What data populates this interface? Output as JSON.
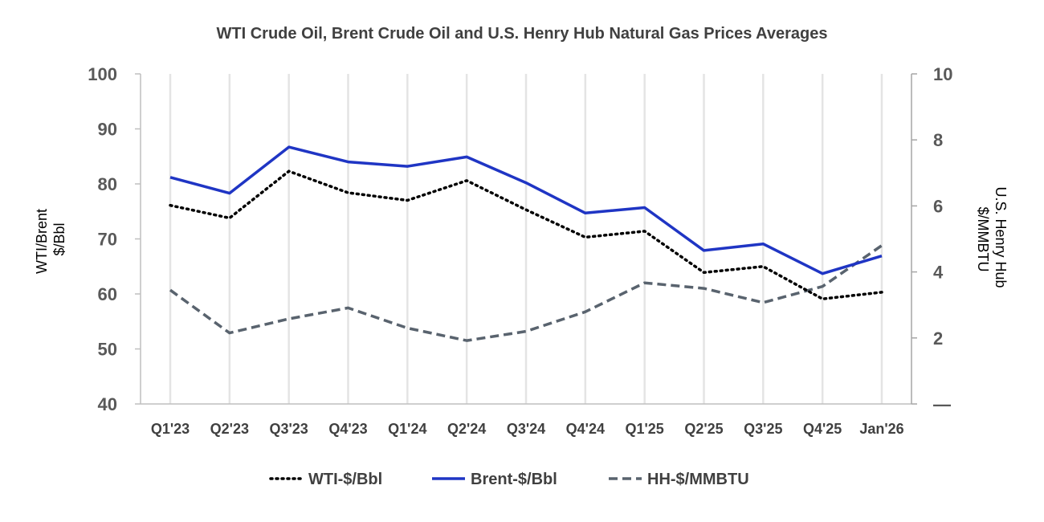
{
  "chart_data": {
    "type": "line",
    "title": "WTI Crude Oil, Brent Crude Oil and U.S. Henry Hub Natural Gas Prices Averages",
    "categories": [
      "Q1'23",
      "Q2'23",
      "Q3'23",
      "Q4'23",
      "Q1'24",
      "Q2'24",
      "Q3'24",
      "Q4'24",
      "Q1'25",
      "Q2'25",
      "Q3'25",
      "Q4'25",
      "Jan'26"
    ],
    "y_left": {
      "label_lines": [
        "WTI/Brent",
        "$/Bbl"
      ],
      "range": [
        40,
        100
      ],
      "ticks": [
        40,
        50,
        60,
        70,
        80,
        90,
        100
      ]
    },
    "y_right": {
      "label_lines": [
        "U.S. Henry Hub",
        "$/MMBTU"
      ],
      "range": [
        0,
        10
      ],
      "ticks": [
        0,
        2,
        4,
        6,
        8,
        10
      ],
      "tick_labels": [
        "—",
        "2",
        "4",
        "6",
        "8",
        "10"
      ]
    },
    "series": [
      {
        "name": "WTI-$/Bbl",
        "axis": "left",
        "style": "dotted",
        "color": "#000000",
        "values": [
          76.1,
          73.8,
          82.3,
          78.4,
          77.0,
          80.6,
          75.3,
          70.3,
          71.4,
          63.9,
          65.0,
          59.1,
          60.3
        ]
      },
      {
        "name": "Brent-$/Bbl",
        "axis": "left",
        "style": "solid",
        "color": "#1f35c4",
        "values": [
          81.2,
          78.3,
          86.7,
          84.0,
          83.2,
          84.9,
          80.2,
          74.7,
          75.7,
          67.9,
          69.1,
          63.7,
          66.9
        ]
      },
      {
        "name": "HH-$/MMBTU",
        "axis": "right",
        "style": "dashed",
        "color": "#59636e",
        "values": [
          3.45,
          2.15,
          2.58,
          2.91,
          2.3,
          1.92,
          2.2,
          2.79,
          3.67,
          3.5,
          3.07,
          3.56,
          4.8
        ]
      }
    ],
    "legend": [
      "WTI-$/Bbl",
      "Brent-$/Bbl",
      "HH-$/MMBTU"
    ],
    "legend_position": "bottom",
    "grid": "vertical"
  }
}
